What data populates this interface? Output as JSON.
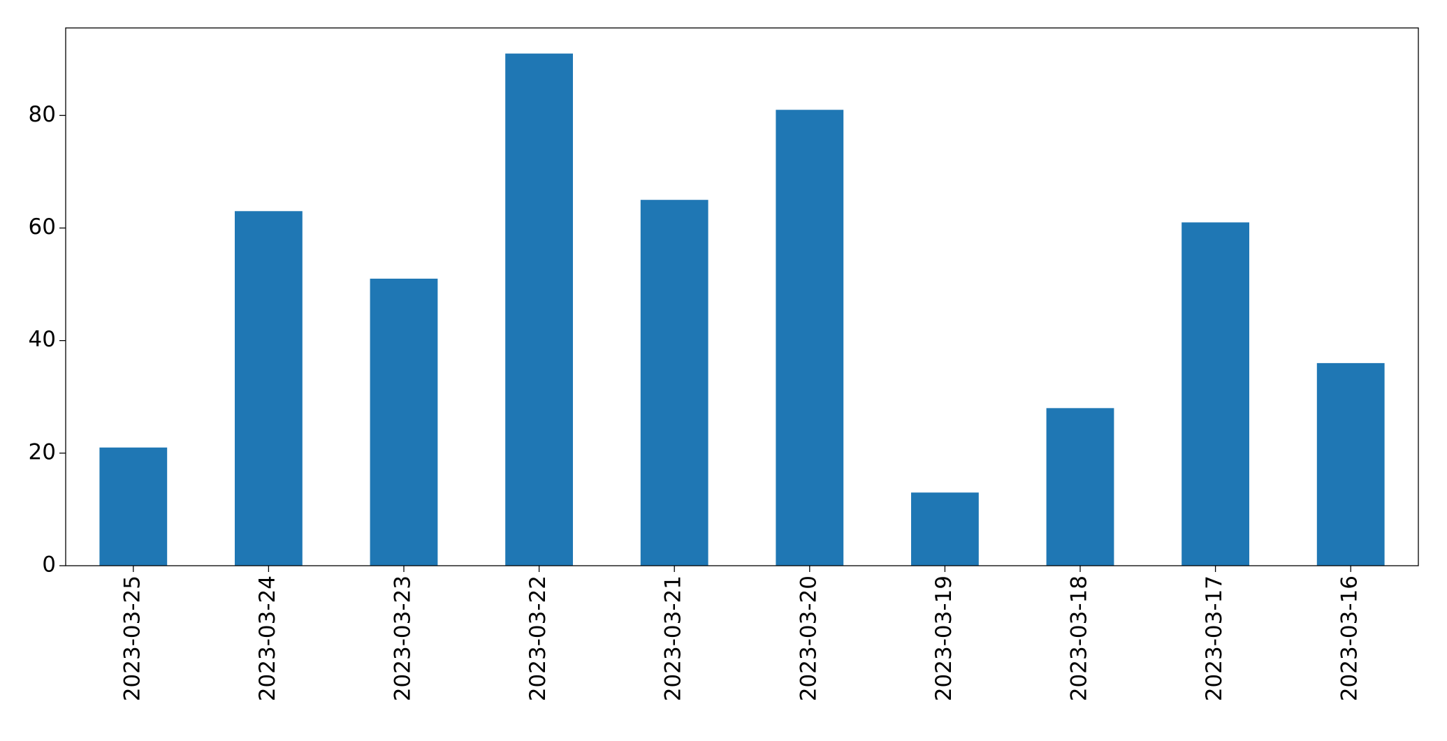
{
  "chart_data": {
    "type": "bar",
    "categories": [
      "2023-03-25",
      "2023-03-24",
      "2023-03-23",
      "2023-03-22",
      "2023-03-21",
      "2023-03-20",
      "2023-03-19",
      "2023-03-18",
      "2023-03-17",
      "2023-03-16"
    ],
    "values": [
      21,
      63,
      51,
      91,
      65,
      81,
      13,
      28,
      61,
      36
    ],
    "color": "#1f77b4",
    "ylim": [
      0,
      95.55
    ],
    "yticks": [
      0,
      20,
      40,
      60,
      80
    ],
    "grid": false
  }
}
